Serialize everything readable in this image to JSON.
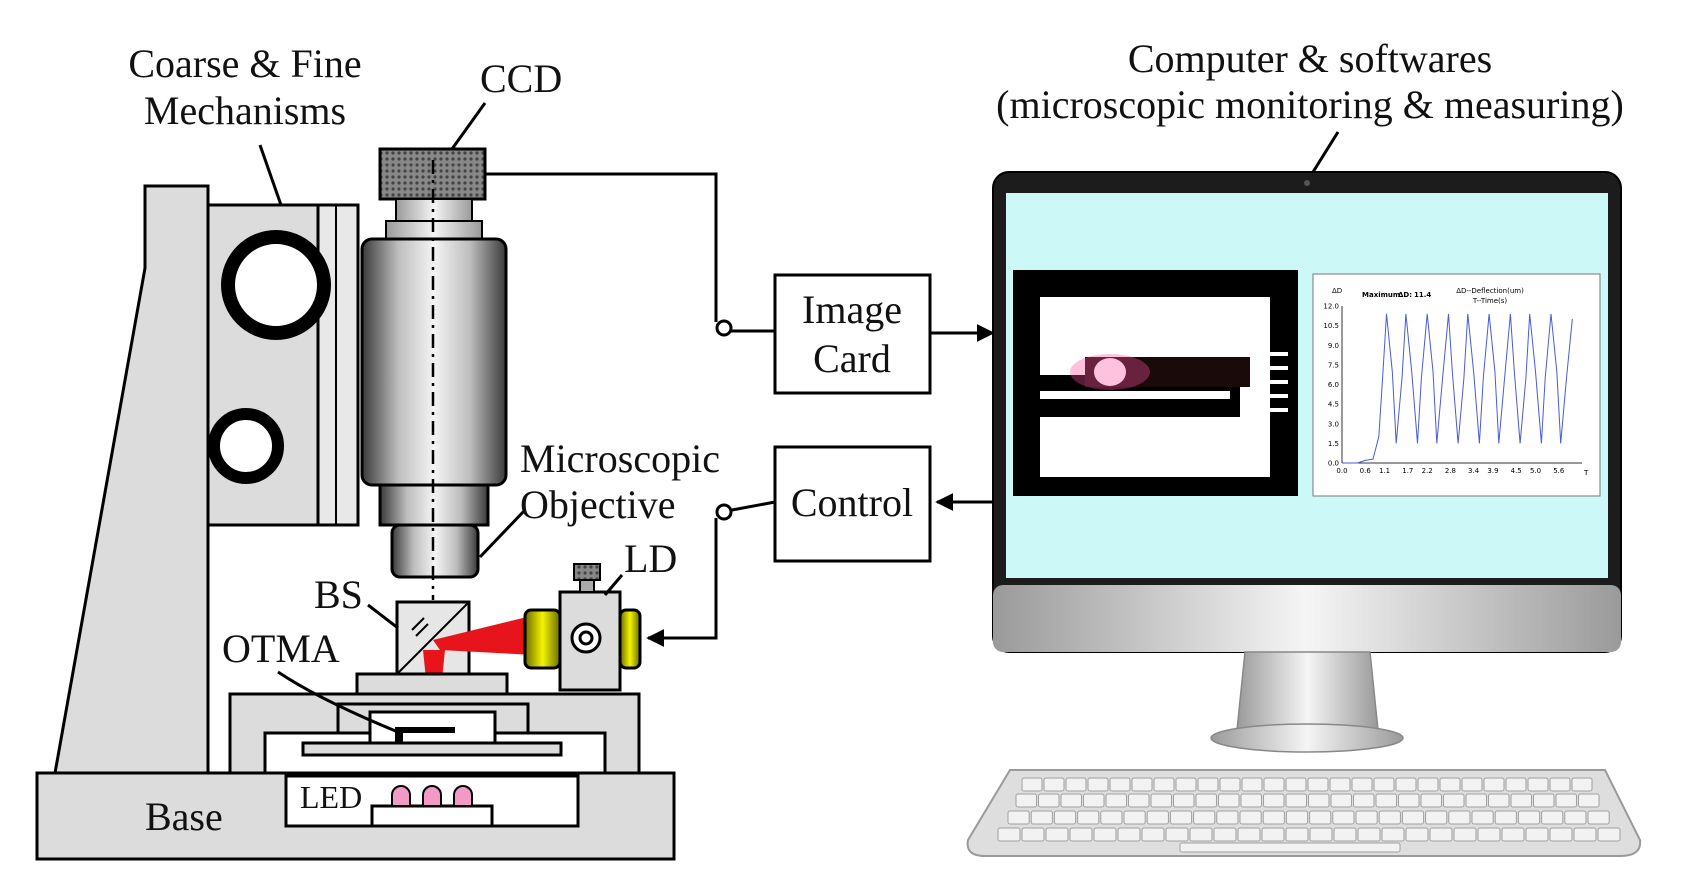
{
  "labels": {
    "coarse_fine_line1": "Coarse & Fine",
    "coarse_fine_line2": "Mechanisms",
    "ccd": "CCD",
    "microscopic_line1": "Microscopic",
    "microscopic_line2": "Objective",
    "bs": "BS",
    "ld": "LD",
    "otma": "OTMA",
    "led": "LED",
    "base": "Base",
    "computer_line1": "Computer & softwares",
    "computer_line2": "(microscopic monitoring & measuring)"
  },
  "boxes": {
    "image_card_line1": "Image",
    "image_card_line2": "Card",
    "control": "Control"
  },
  "colors": {
    "laser_red": "#e8141b",
    "screen_bg": "#cdf8f8",
    "ld_yellow": "#e6e600",
    "led_pink": "#f29ac6"
  },
  "plot": {
    "ylabel": "ΔD",
    "max_label": "Maximum",
    "max_symbol": "ΔD:",
    "max_value": "11.4",
    "legend_line1": "ΔD--Deflection(um)",
    "legend_line2": "T--Time(s)",
    "x_axis_label": "T"
  },
  "chart_data": {
    "type": "line",
    "title": "",
    "xlabel": "T",
    "ylabel": "ΔD",
    "legend": [
      "ΔD--Deflection(um)",
      "T--Time(s)"
    ],
    "annotation": "Maximum ΔD: 11.4",
    "x_ticks": [
      "0.0",
      "0.6",
      "1.1",
      "1.7",
      "2.2",
      "2.8",
      "3.4",
      "3.9",
      "4.5",
      "5.0",
      "5.6"
    ],
    "y_ticks": [
      "0.0",
      "1.5",
      "3.0",
      "4.5",
      "6.0",
      "7.5",
      "9.0",
      "10.5",
      "12.0"
    ],
    "xlim": [
      0,
      6.2
    ],
    "ylim": [
      0,
      12.0
    ],
    "series": [
      {
        "name": "ΔD--Deflection(um)",
        "x": [
          0.0,
          0.4,
          0.6,
          0.8,
          0.95,
          1.05,
          1.15,
          1.3,
          1.4,
          1.55,
          1.65,
          1.8,
          1.95,
          2.05,
          2.2,
          2.35,
          2.45,
          2.6,
          2.75,
          2.85,
          3.0,
          3.15,
          3.25,
          3.4,
          3.55,
          3.65,
          3.8,
          3.95,
          4.05,
          4.2,
          4.35,
          4.45,
          4.6,
          4.75,
          4.85,
          5.0,
          5.15,
          5.25,
          5.4,
          5.55,
          5.65,
          5.8,
          5.95
        ],
        "y": [
          0.0,
          0.0,
          0.2,
          0.3,
          2.0,
          6.5,
          11.4,
          7.0,
          1.5,
          6.5,
          11.4,
          7.0,
          1.5,
          6.5,
          11.4,
          7.0,
          1.5,
          6.5,
          11.4,
          7.0,
          1.5,
          6.5,
          11.4,
          7.0,
          1.5,
          6.5,
          11.4,
          7.0,
          1.5,
          6.5,
          11.4,
          7.0,
          1.5,
          6.5,
          11.4,
          7.0,
          1.5,
          6.5,
          11.4,
          7.0,
          1.5,
          6.5,
          11.0
        ]
      }
    ]
  }
}
